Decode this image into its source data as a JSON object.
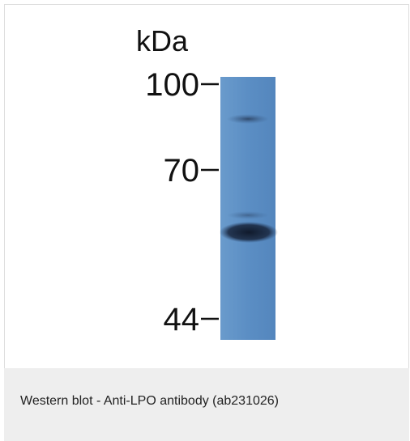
{
  "figure": {
    "unit": "kDa",
    "markers": [
      "100",
      "70",
      "44"
    ]
  },
  "caption": "Western blot - Anti-LPO antibody (ab231026)"
}
